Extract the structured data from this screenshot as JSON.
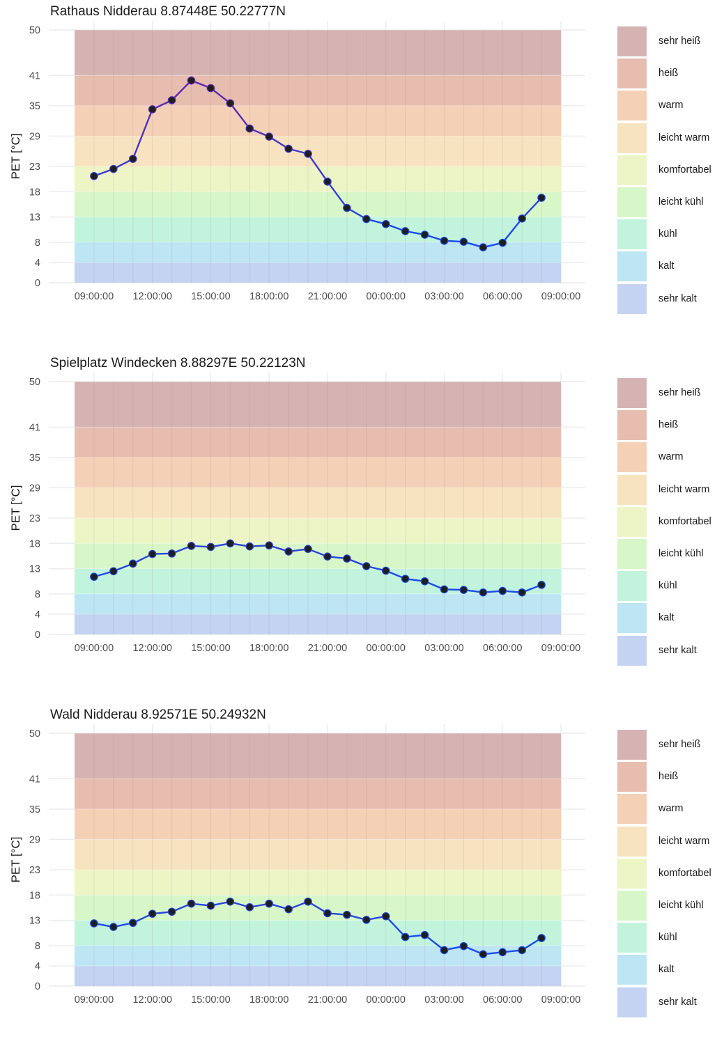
{
  "legend": {
    "items": [
      {
        "label": "sehr heiß",
        "color": "#d6b3b3"
      },
      {
        "label": "heiß",
        "color": "#e6bdae"
      },
      {
        "label": "warm",
        "color": "#f4d0b6"
      },
      {
        "label": "leicht warm",
        "color": "#f8e3c0"
      },
      {
        "label": "komfortabel",
        "color": "#edf5c6"
      },
      {
        "label": "leicht kühl",
        "color": "#d8f7c8"
      },
      {
        "label": "kühl",
        "color": "#c2f3dd"
      },
      {
        "label": "kalt",
        "color": "#bde5f3"
      },
      {
        "label": "sehr kalt",
        "color": "#c3d3f1"
      }
    ]
  },
  "chart_data": [
    {
      "type": "line",
      "title": "Rathaus Nidderau 8.87448E 50.22777N",
      "ylabel": "PET [°C]",
      "xlabel": "",
      "yticks": [
        0,
        4,
        8,
        13,
        18,
        23,
        29,
        35,
        41,
        50
      ],
      "xticks": [
        "09:00:00",
        "12:00:00",
        "15:00:00",
        "18:00:00",
        "21:00:00",
        "00:00:00",
        "03:00:00",
        "06:00:00",
        "09:00:00"
      ],
      "ylim": [
        0,
        50
      ],
      "bands": [
        {
          "label": "sehr kalt",
          "from": 0,
          "to": 4
        },
        {
          "label": "kalt",
          "from": 4,
          "to": 8
        },
        {
          "label": "kühl",
          "from": 8,
          "to": 13
        },
        {
          "label": "leicht kühl",
          "from": 13,
          "to": 18
        },
        {
          "label": "komfortabel",
          "from": 18,
          "to": 23
        },
        {
          "label": "leicht warm",
          "from": 23,
          "to": 29
        },
        {
          "label": "warm",
          "from": 29,
          "to": 35
        },
        {
          "label": "heiß",
          "from": 35,
          "to": 41
        },
        {
          "label": "sehr heiß",
          "from": 41,
          "to": 50
        }
      ],
      "x_hours": [
        9,
        10,
        11,
        12,
        13,
        14,
        15,
        16,
        17,
        18,
        19,
        20,
        21,
        22,
        23,
        24,
        25,
        26,
        27,
        28,
        29,
        30,
        31,
        32
      ],
      "values": [
        21.1,
        22.5,
        24.5,
        34.3,
        36.1,
        40.0,
        38.5,
        35.5,
        30.5,
        28.9,
        26.5,
        25.5,
        20.0,
        14.8,
        12.6,
        11.6,
        10.2,
        9.5,
        8.3,
        8.1,
        7.0,
        7.9,
        12.7,
        16.8
      ]
    },
    {
      "type": "line",
      "title": "Spielplatz Windecken 8.88297E 50.22123N",
      "ylabel": "PET [°C]",
      "xlabel": "",
      "yticks": [
        0,
        4,
        8,
        13,
        18,
        23,
        29,
        35,
        41,
        50
      ],
      "xticks": [
        "09:00:00",
        "12:00:00",
        "15:00:00",
        "18:00:00",
        "21:00:00",
        "00:00:00",
        "03:00:00",
        "06:00:00",
        "09:00:00"
      ],
      "ylim": [
        0,
        50
      ],
      "bands": [
        {
          "label": "sehr kalt",
          "from": 0,
          "to": 4
        },
        {
          "label": "kalt",
          "from": 4,
          "to": 8
        },
        {
          "label": "kühl",
          "from": 8,
          "to": 13
        },
        {
          "label": "leicht kühl",
          "from": 13,
          "to": 18
        },
        {
          "label": "komfortabel",
          "from": 18,
          "to": 23
        },
        {
          "label": "leicht warm",
          "from": 23,
          "to": 29
        },
        {
          "label": "warm",
          "from": 29,
          "to": 35
        },
        {
          "label": "heiß",
          "from": 35,
          "to": 41
        },
        {
          "label": "sehr heiß",
          "from": 41,
          "to": 50
        }
      ],
      "x_hours": [
        9,
        10,
        11,
        12,
        13,
        14,
        15,
        16,
        17,
        18,
        19,
        20,
        21,
        22,
        23,
        24,
        25,
        26,
        27,
        28,
        29,
        30,
        31,
        32
      ],
      "values": [
        11.4,
        12.5,
        14.0,
        15.9,
        16.0,
        17.5,
        17.3,
        18.0,
        17.4,
        17.6,
        16.4,
        16.9,
        15.4,
        15.0,
        13.5,
        12.6,
        11.0,
        10.5,
        8.9,
        8.8,
        8.3,
        8.6,
        8.3,
        9.8
      ]
    },
    {
      "type": "line",
      "title": "Wald Nidderau 8.92571E 50.24932N",
      "ylabel": "PET [°C]",
      "xlabel": "",
      "yticks": [
        0,
        4,
        8,
        13,
        18,
        23,
        29,
        35,
        41,
        50
      ],
      "xticks": [
        "09:00:00",
        "12:00:00",
        "15:00:00",
        "18:00:00",
        "21:00:00",
        "00:00:00",
        "03:00:00",
        "06:00:00",
        "09:00:00"
      ],
      "ylim": [
        0,
        50
      ],
      "bands": [
        {
          "label": "sehr kalt",
          "from": 0,
          "to": 4
        },
        {
          "label": "kalt",
          "from": 4,
          "to": 8
        },
        {
          "label": "kühl",
          "from": 8,
          "to": 13
        },
        {
          "label": "leicht kühl",
          "from": 13,
          "to": 18
        },
        {
          "label": "komfortabel",
          "from": 18,
          "to": 23
        },
        {
          "label": "leicht warm",
          "from": 23,
          "to": 29
        },
        {
          "label": "warm",
          "from": 29,
          "to": 35
        },
        {
          "label": "heiß",
          "from": 35,
          "to": 41
        },
        {
          "label": "sehr heiß",
          "from": 41,
          "to": 50
        }
      ],
      "x_hours": [
        9,
        10,
        11,
        12,
        13,
        14,
        15,
        16,
        17,
        18,
        19,
        20,
        21,
        22,
        23,
        24,
        25,
        26,
        27,
        28,
        29,
        30,
        31,
        32
      ],
      "values": [
        12.4,
        11.7,
        12.5,
        14.3,
        14.7,
        16.3,
        15.9,
        16.7,
        15.6,
        16.3,
        15.2,
        16.7,
        14.4,
        14.1,
        13.1,
        13.8,
        9.7,
        10.1,
        7.1,
        7.9,
        6.3,
        6.7,
        7.1,
        9.5
      ]
    }
  ]
}
